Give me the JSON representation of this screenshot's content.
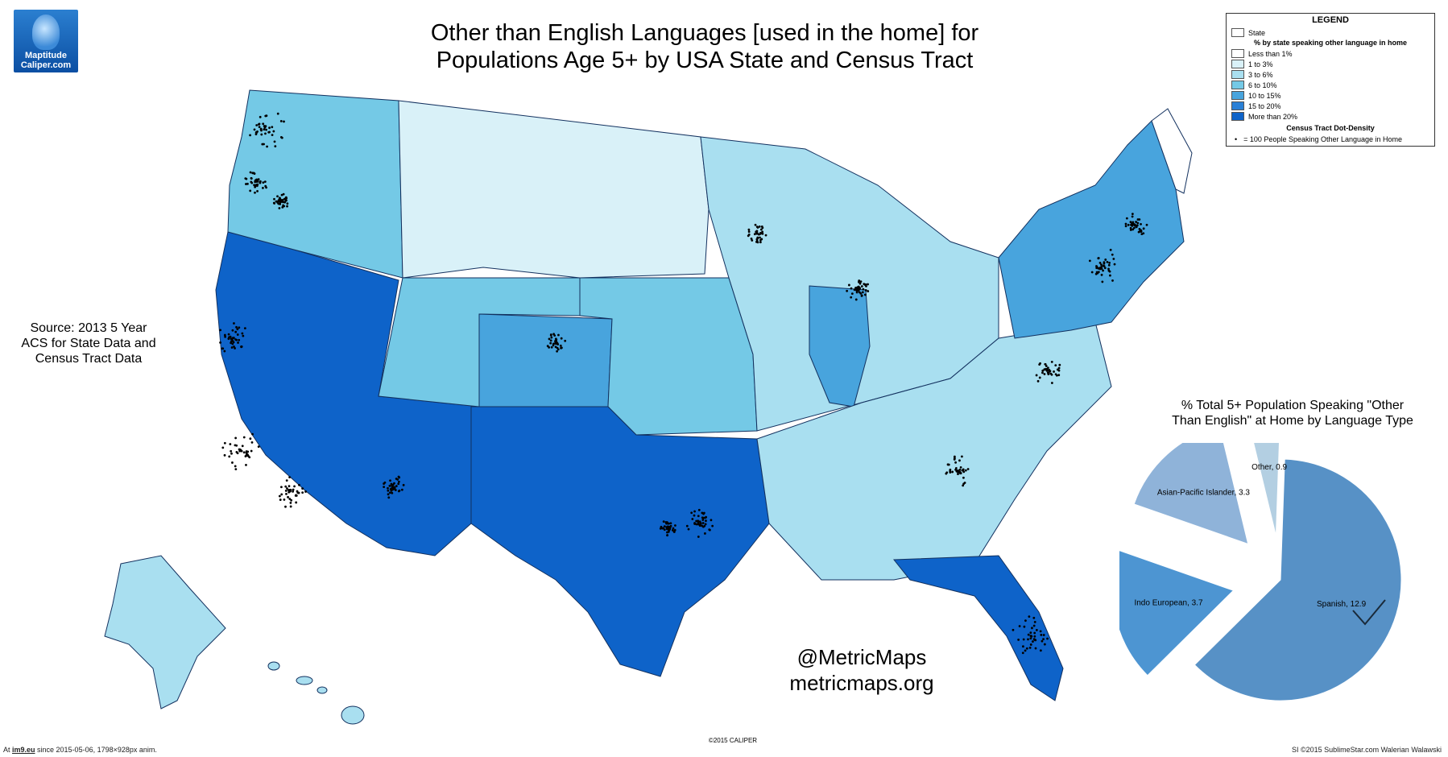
{
  "logo": {
    "line1": "Maptitude",
    "line2": "Caliper.com"
  },
  "title": {
    "line1": "Other than English Languages [used in the home] for",
    "line2": "Populations Age 5+ by USA State and Census Tract"
  },
  "source": {
    "line1": "Source: 2013 5 Year",
    "line2": "ACS for State Data and",
    "line3": "Census Tract Data"
  },
  "legend": {
    "title": "LEGEND",
    "state_label": "State",
    "subtitle": "% by state speaking other language in home",
    "classes": [
      {
        "label": "Less than 1%",
        "color": "#ffffff"
      },
      {
        "label": "1 to 3%",
        "color": "#d9f1f8"
      },
      {
        "label": "3 to 6%",
        "color": "#a9dff0"
      },
      {
        "label": "6 to 10%",
        "color": "#74c9e6"
      },
      {
        "label": "10 to 15%",
        "color": "#48a4dd"
      },
      {
        "label": "15 to 20%",
        "color": "#2a80d6"
      },
      {
        "label": "More than 20%",
        "color": "#0e63c9"
      }
    ],
    "dot_title": "Census Tract Dot-Density",
    "dot_label": "= 100 People Speaking Other Language in Home"
  },
  "watermark": {
    "handle": "@MetricMaps",
    "site": "metricmaps.org"
  },
  "copyright": "©2015 CALIPER",
  "pie": {
    "caption_line1": "% Total 5+ Population Speaking \"Other",
    "caption_line2": "Than English\" at Home by Language Type",
    "slices": [
      {
        "label": "Spanish, 12.9",
        "value": 12.9,
        "color": "#5791c6"
      },
      {
        "label": "Indo European, 3.7",
        "value": 3.7,
        "color": "#4d95d2"
      },
      {
        "label": "Asian-Pacific Islander, 3.3",
        "value": 3.3,
        "color": "#8fb3d9"
      },
      {
        "label": "Other, 0.9",
        "value": 0.9,
        "color": "#b3cfe2"
      }
    ]
  },
  "footer": {
    "left_prefix": "At ",
    "left_link": "im9.eu",
    "left_suffix": " since 2015-05-06, 1798×928px anim.",
    "right": "SI ©2015 SublimeStar.com Walerian Walawski"
  }
}
